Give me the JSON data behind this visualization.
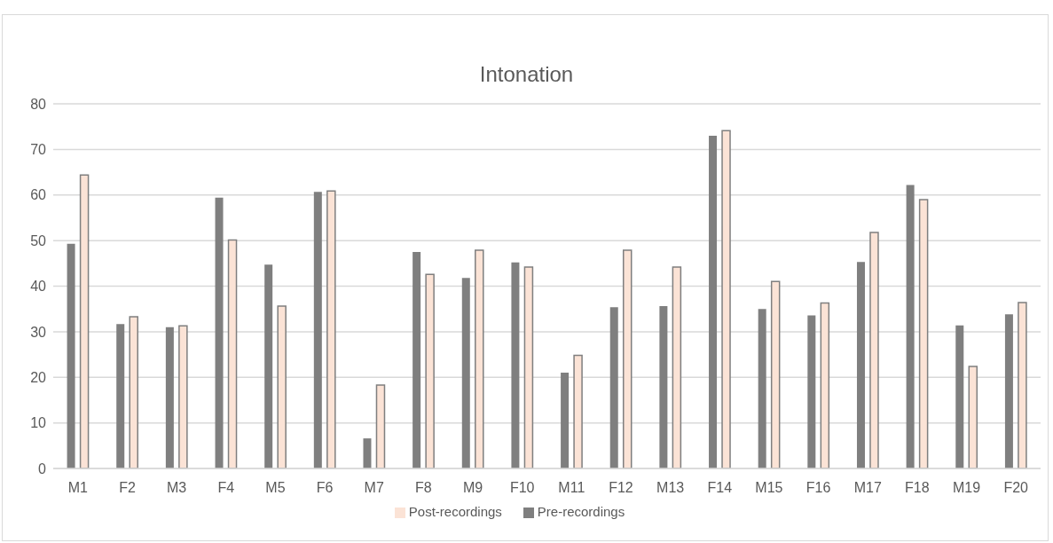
{
  "chart_data": {
    "type": "bar",
    "title": "Intonation",
    "categories": [
      "M1",
      "F2",
      "M3",
      "F4",
      "M5",
      "F6",
      "M7",
      "F8",
      "M9",
      "F10",
      "M11",
      "F12",
      "M13",
      "F14",
      "M15",
      "F16",
      "M17",
      "F18",
      "M19",
      "F20"
    ],
    "series": [
      {
        "name": "Pre-recordings",
        "color": "#7f7f7f",
        "values": [
          49.3,
          31.7,
          31,
          59.4,
          44.7,
          60.7,
          6.6,
          47.5,
          41.8,
          45.2,
          21,
          35.4,
          35.6,
          73,
          35,
          33.6,
          45.3,
          62.2,
          31.4,
          33.8
        ]
      },
      {
        "name": "Post-recordings",
        "color": "#fbe3d6",
        "values": [
          64.4,
          33.3,
          31.3,
          50.1,
          35.6,
          60.9,
          18.3,
          42.6,
          47.9,
          44.2,
          24.8,
          47.9,
          44.2,
          74.1,
          41,
          36.3,
          51.8,
          59,
          22.4,
          36.4
        ]
      }
    ],
    "ylim": [
      0,
      80
    ],
    "yticks": [
      0,
      10,
      20,
      30,
      40,
      50,
      60,
      70,
      80
    ],
    "grid": "y",
    "legend": "bottom"
  }
}
